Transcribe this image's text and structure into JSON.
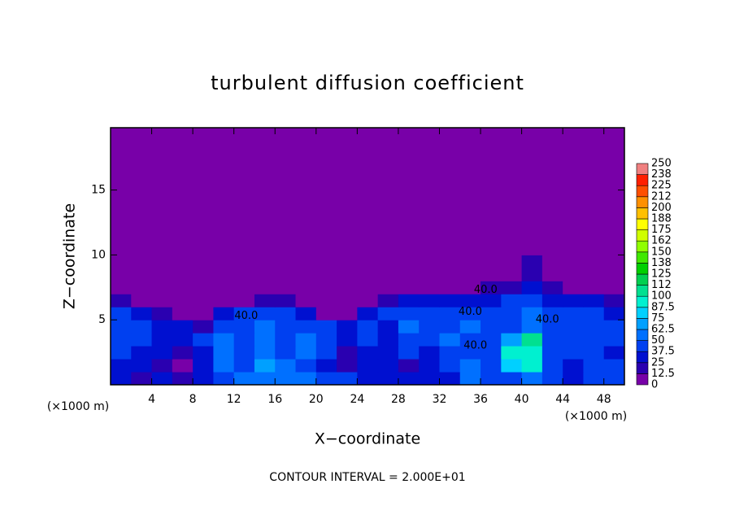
{
  "chart_data": {
    "type": "heatmap",
    "title": "turbulent diffusion coefficient",
    "x_label": "X−coordinate",
    "y_label": "Z−coordinate",
    "x_unit": "(×1000 m)",
    "y_unit": "(×1000 m)",
    "footer": "CONTOUR INTERVAL = 2.000E+01",
    "xlim": [
      0,
      50
    ],
    "ylim": [
      0,
      19.8
    ],
    "xticks": [
      4,
      8,
      12,
      16,
      20,
      24,
      28,
      32,
      36,
      40,
      44,
      48
    ],
    "yticks": [
      5,
      10,
      15
    ],
    "x_bins": [
      0,
      2,
      4,
      6,
      8,
      10,
      12,
      14,
      16,
      18,
      20,
      22,
      24,
      26,
      28,
      30,
      32,
      34,
      36,
      38,
      40,
      42,
      44,
      46,
      48,
      50
    ],
    "y_bins": [
      0,
      1,
      2,
      3,
      4,
      5,
      6,
      7,
      8,
      10,
      19.8
    ],
    "values": [
      [
        30,
        20,
        25,
        15,
        35,
        45,
        55,
        60,
        55,
        50,
        45,
        40,
        30,
        35,
        25,
        30,
        35,
        55,
        45,
        40,
        60,
        45,
        35,
        40,
        45
      ],
      [
        35,
        30,
        20,
        10,
        30,
        50,
        45,
        70,
        50,
        45,
        30,
        15,
        35,
        30,
        20,
        30,
        40,
        50,
        40,
        80,
        90,
        40,
        35,
        40,
        40
      ],
      [
        40,
        35,
        25,
        20,
        35,
        55,
        45,
        60,
        45,
        55,
        40,
        20,
        30,
        35,
        40,
        35,
        45,
        45,
        40,
        90,
        95,
        40,
        45,
        40,
        35
      ],
      [
        40,
        45,
        30,
        25,
        40,
        50,
        40,
        55,
        40,
        50,
        45,
        30,
        40,
        30,
        45,
        45,
        50,
        40,
        45,
        70,
        100,
        40,
        45,
        45,
        40
      ],
      [
        45,
        40,
        35,
        30,
        20,
        45,
        45,
        50,
        45,
        45,
        40,
        35,
        45,
        35,
        50,
        40,
        45,
        50,
        40,
        45,
        60,
        45,
        40,
        45,
        40
      ],
      [
        40,
        30,
        15,
        5,
        10,
        25,
        40,
        45,
        40,
        30,
        10,
        5,
        30,
        40,
        45,
        40,
        40,
        45,
        40,
        45,
        50,
        40,
        40,
        45,
        35
      ],
      [
        15,
        5,
        0,
        0,
        0,
        0,
        10,
        20,
        15,
        5,
        0,
        0,
        5,
        15,
        30,
        35,
        30,
        35,
        30,
        45,
        40,
        30,
        30,
        35,
        20
      ],
      [
        0,
        0,
        0,
        0,
        0,
        0,
        0,
        0,
        0,
        0,
        0,
        0,
        0,
        0,
        0,
        0,
        0,
        10,
        15,
        20,
        25,
        20,
        10,
        0,
        0
      ],
      [
        0,
        0,
        0,
        0,
        0,
        0,
        0,
        0,
        0,
        0,
        0,
        0,
        0,
        0,
        0,
        0,
        0,
        0,
        0,
        10,
        15,
        10,
        5,
        0,
        0
      ],
      [
        0,
        0,
        0,
        0,
        0,
        0,
        0,
        0,
        0,
        0,
        0,
        0,
        0,
        0,
        0,
        0,
        0,
        0,
        0,
        0,
        0,
        0,
        0,
        0,
        0
      ]
    ],
    "cbar_ticks": [
      0,
      12.5,
      25,
      37.5,
      50,
      62.5,
      75,
      87.5,
      100,
      {
        "value": 112.5,
        "label": "112"
      },
      125,
      {
        "value": 137.5,
        "label": "138"
      },
      150,
      {
        "value": 162.5,
        "label": "162"
      },
      175,
      {
        "value": 187.5,
        "label": "188"
      },
      200,
      {
        "value": 212.5,
        "label": "212"
      },
      225,
      {
        "value": 237.5,
        "label": "238"
      },
      250
    ],
    "cbar_colors": [
      "#7800a8",
      "#2a00b0",
      "#0010d0",
      "#0040f0",
      "#0070ff",
      "#00a0ff",
      "#00d0ff",
      "#00f0d0",
      "#00e090",
      "#00d050",
      "#00d000",
      "#40e800",
      "#90ff00",
      "#d0ff00",
      "#ffff00",
      "#ffc000",
      "#ff9000",
      "#ff5000",
      "#ff2000",
      "#f08080"
    ],
    "contour_labels": [
      {
        "text": "40.0",
        "x": 13.2,
        "y": 5.3
      },
      {
        "text": "40.0",
        "x": 36.5,
        "y": 7.3
      },
      {
        "text": "40.0",
        "x": 35,
        "y": 5.6
      },
      {
        "text": "40.0",
        "x": 42.5,
        "y": 5
      },
      {
        "text": "40.0",
        "x": 35.5,
        "y": 3
      }
    ]
  }
}
